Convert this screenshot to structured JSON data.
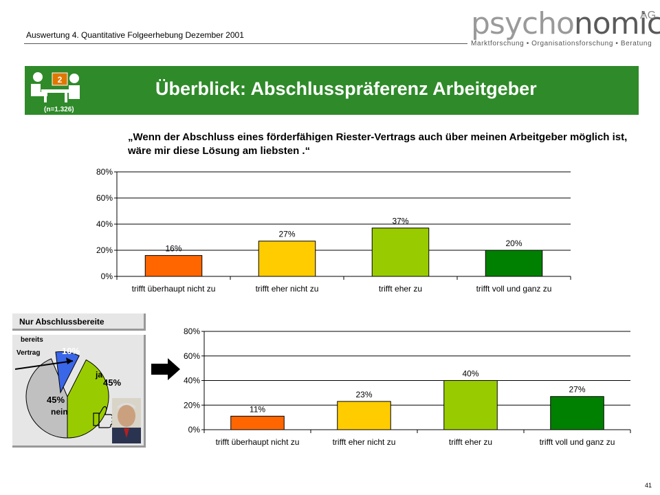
{
  "header": {
    "subtitle": "Auswertung 4. Quantitative Folgeerhebung Dezember 2001",
    "logo": {
      "part1": "psycho",
      "part2": "nomics",
      "ag": "AG",
      "tagline": "Marktforschung • Organisationsforschung • Beratung"
    }
  },
  "banner": {
    "title": "Überblick: Abschlusspräferenz Arbeitgeber",
    "badge": "2",
    "n_label": "(n=1.326)"
  },
  "quote": "„Wenn der Abschluss eines förderfähigen Riester-Vertrags auch über meinen Arbeitgeber möglich ist, wäre mir diese Lösung am liebsten .“",
  "segment": {
    "header": "Nur Abschlussbereite",
    "label_bereits": "bereits",
    "label_vertrag": "Vertrag",
    "label_ja": "ja",
    "label_nein": "nein",
    "pct_bereits": "10%",
    "pct_ja": "45%",
    "pct_nein": "45%"
  },
  "colors": {
    "green_banner": "#2f8a2a",
    "orange": "#ff6600",
    "yellow": "#ffcc00",
    "lightgreen": "#99cc00",
    "darkgreen": "#008000",
    "pie_blue": "#3a66e8",
    "pie_lime": "#99cc00",
    "pie_grey": "#c0c0c0"
  },
  "page_number": "41",
  "chart_data": [
    {
      "type": "bar",
      "categories": [
        "trifft überhaupt nicht zu",
        "trifft eher nicht zu",
        "trifft eher zu",
        "trifft voll und ganz zu"
      ],
      "values": [
        16,
        27,
        37,
        20
      ],
      "value_labels": [
        "16%",
        "27%",
        "37%",
        "20%"
      ],
      "bar_colors": [
        "#ff6600",
        "#ffcc00",
        "#99cc00",
        "#008000"
      ],
      "yticks": [
        "0%",
        "20%",
        "40%",
        "60%",
        "80%"
      ],
      "ylim": [
        0,
        80
      ],
      "grid": true
    },
    {
      "type": "bar",
      "categories": [
        "trifft überhaupt nicht zu",
        "trifft eher nicht zu",
        "trifft eher zu",
        "trifft voll und ganz zu"
      ],
      "values": [
        11,
        23,
        40,
        27
      ],
      "value_labels": [
        "11%",
        "23%",
        "40%",
        "27%"
      ],
      "bar_colors": [
        "#ff6600",
        "#ffcc00",
        "#99cc00",
        "#008000"
      ],
      "yticks": [
        "0%",
        "20%",
        "40%",
        "60%",
        "80%"
      ],
      "ylim": [
        0,
        80
      ],
      "grid": true
    },
    {
      "type": "pie",
      "labels": [
        "bereits Vertrag",
        "ja",
        "nein"
      ],
      "values": [
        10,
        45,
        45
      ],
      "value_labels": [
        "10%",
        "45%",
        "45%"
      ],
      "colors": [
        "#3a66e8",
        "#99cc00",
        "#c0c0c0"
      ]
    }
  ]
}
